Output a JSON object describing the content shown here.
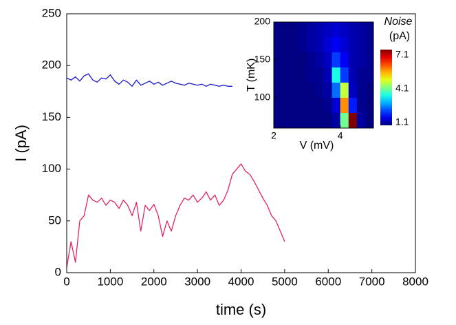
{
  "chart_data": [
    {
      "type": "line",
      "x_label": "time (s)",
      "y_label": "I (pA)",
      "xlim": [
        0,
        8000
      ],
      "xticks": [
        0,
        1000,
        2000,
        3000,
        4000,
        5000,
        6000,
        7000,
        8000
      ],
      "ylim": [
        0,
        250
      ],
      "yticks": [
        0,
        50,
        100,
        150,
        200,
        250
      ],
      "series": [
        {
          "color": "#1414c8",
          "x": [
            0,
            100,
            200,
            300,
            400,
            500,
            600,
            700,
            800,
            900,
            1000,
            1100,
            1200,
            1300,
            1400,
            1500,
            1600,
            1700,
            1800,
            1900,
            2000,
            2100,
            2200,
            2300,
            2400,
            2500,
            2600,
            2700,
            2800,
            2900,
            3000,
            3100,
            3200,
            3300,
            3400,
            3500,
            3600,
            3700,
            3800
          ],
          "values": [
            188,
            186,
            189,
            185,
            190,
            192,
            186,
            184,
            188,
            187,
            191,
            185,
            182,
            186,
            184,
            180,
            186,
            181,
            183,
            185,
            182,
            184,
            181,
            183,
            185,
            183,
            182,
            181,
            183,
            182,
            181,
            182,
            180,
            182,
            181,
            180,
            181,
            180,
            180
          ]
        },
        {
          "color": "#e0245e",
          "x": [
            0,
            100,
            200,
            300,
            400,
            500,
            600,
            700,
            800,
            900,
            1000,
            1100,
            1200,
            1300,
            1400,
            1500,
            1600,
            1700,
            1800,
            1900,
            2000,
            2100,
            2200,
            2300,
            2400,
            2500,
            2600,
            2700,
            2800,
            2900,
            3000,
            3100,
            3200,
            3300,
            3400,
            3500,
            3600,
            3700,
            3800,
            3900,
            4000,
            4100,
            4200,
            4300,
            4400,
            4500,
            4600,
            4700,
            4800,
            4900,
            5000
          ],
          "values": [
            5,
            30,
            10,
            50,
            55,
            75,
            70,
            68,
            72,
            65,
            70,
            68,
            62,
            70,
            65,
            55,
            68,
            40,
            65,
            60,
            66,
            55,
            35,
            50,
            40,
            55,
            65,
            72,
            70,
            75,
            68,
            72,
            78,
            70,
            75,
            65,
            70,
            80,
            95,
            100,
            105,
            98,
            95,
            88,
            80,
            72,
            65,
            55,
            50,
            40,
            30
          ]
        }
      ]
    },
    {
      "type": "heatmap",
      "x_label": "V (mV)",
      "y_label": "T (mK)",
      "colorbar_title": "Noise",
      "colorbar_unit": "(pA)",
      "xlim": [
        2,
        5
      ],
      "xticks": [
        2,
        4
      ],
      "ylim": [
        60,
        200
      ],
      "yticks": [
        100,
        150,
        200
      ],
      "clim": [
        1.1,
        7.1
      ],
      "cticks": [
        1.1,
        4.1,
        7.1
      ],
      "x": [
        2.125,
        2.375,
        2.625,
        2.875,
        3.125,
        3.375,
        3.625,
        3.875,
        4.125,
        4.375,
        4.625,
        4.875
      ],
      "y": [
        190,
        170,
        150,
        130,
        110,
        90,
        70
      ],
      "z": [
        [
          1.1,
          1.1,
          1.1,
          1.2,
          1.3,
          1.4,
          1.5,
          1.6,
          1.5,
          1.4,
          1.3,
          1.2
        ],
        [
          1.1,
          1.1,
          1.1,
          1.2,
          1.3,
          1.4,
          1.6,
          1.8,
          1.6,
          1.4,
          1.3,
          1.2
        ],
        [
          1.1,
          1.1,
          1.1,
          1.1,
          1.2,
          1.3,
          1.5,
          2.2,
          1.8,
          1.4,
          1.3,
          1.2
        ],
        [
          1.1,
          1.1,
          1.1,
          1.1,
          1.2,
          1.2,
          1.4,
          3.5,
          2.2,
          1.4,
          1.2,
          1.2
        ],
        [
          1.1,
          1.1,
          1.1,
          1.1,
          1.1,
          1.2,
          1.3,
          2.5,
          4.5,
          1.5,
          1.2,
          1.1
        ],
        [
          1.1,
          1.1,
          1.1,
          1.1,
          1.1,
          1.1,
          1.2,
          1.6,
          5.5,
          2.0,
          1.2,
          1.1
        ],
        [
          1.1,
          1.1,
          1.1,
          1.1,
          1.1,
          1.1,
          1.1,
          1.3,
          4.0,
          7.1,
          1.3,
          1.1
        ]
      ]
    }
  ]
}
